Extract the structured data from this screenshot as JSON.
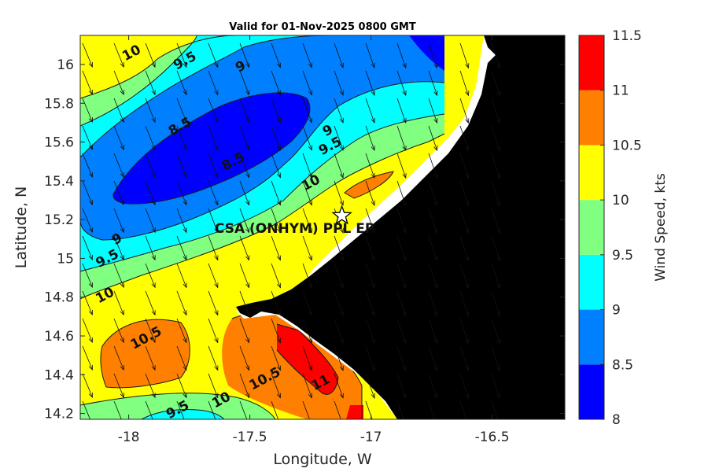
{
  "title": "Valid for 01-Nov-2025 0800 GMT",
  "xlabel": "Longitude, W",
  "ylabel": "Latitude, N",
  "colorbar": {
    "label": "Wind Speed, kts",
    "min": 8,
    "max": 11.5,
    "ticks": [
      "8",
      "8.5",
      "9",
      "9.5",
      "10",
      "10.5",
      "11",
      "11.5"
    ],
    "colors": [
      "#0000ff",
      "#0080ff",
      "#00ffff",
      "#80ff80",
      "#ffff00",
      "#ff8000",
      "#ff0000"
    ]
  },
  "x_axis": {
    "min": -18.2,
    "max": -16.2,
    "ticks": [
      -18,
      -17.5,
      -17,
      -16.5
    ],
    "tick_labels": [
      "-18",
      "-17.5",
      "-17",
      "-16.5"
    ]
  },
  "y_axis": {
    "min": 14.17,
    "max": 16.15,
    "ticks": [
      14.2,
      14.4,
      14.6,
      14.8,
      15,
      15.2,
      15.4,
      15.6,
      15.8,
      16
    ],
    "tick_labels": [
      "14.2",
      "14.4",
      "14.6",
      "14.8",
      "15",
      "15.2",
      "15.4",
      "15.6",
      "15.8",
      "16"
    ]
  },
  "site": {
    "name": "CSA (ONHYM) PPL EP",
    "lon": -17.12,
    "lat": 15.22
  },
  "contour_labels": [
    {
      "text": "10",
      "lon": -17.98,
      "lat": 16.04
    },
    {
      "text": "9.5",
      "lon": -17.76,
      "lat": 16.0
    },
    {
      "text": "9",
      "lon": -17.53,
      "lat": 15.97
    },
    {
      "text": "8.5",
      "lon": -17.78,
      "lat": 15.66
    },
    {
      "text": "8.5",
      "lon": -17.56,
      "lat": 15.48
    },
    {
      "text": "9",
      "lon": -17.17,
      "lat": 15.64
    },
    {
      "text": "9.5",
      "lon": -17.16,
      "lat": 15.56
    },
    {
      "text": "10",
      "lon": -17.24,
      "lat": 15.37
    },
    {
      "text": "9",
      "lon": -18.04,
      "lat": 15.08
    },
    {
      "text": "9.5",
      "lon": -18.08,
      "lat": 14.98
    },
    {
      "text": "10",
      "lon": -18.09,
      "lat": 14.79
    },
    {
      "text": "10.5",
      "lon": -17.92,
      "lat": 14.57
    },
    {
      "text": "10.5",
      "lon": -17.43,
      "lat": 14.36
    },
    {
      "text": "11",
      "lon": -17.2,
      "lat": 14.34
    },
    {
      "text": "10",
      "lon": -17.61,
      "lat": 14.25
    },
    {
      "text": "9.5",
      "lon": -17.79,
      "lat": 14.2
    }
  ],
  "wind_vectors": {
    "direction": "north-northwest wind, arrows pointing south-southeast",
    "units": "kts"
  }
}
